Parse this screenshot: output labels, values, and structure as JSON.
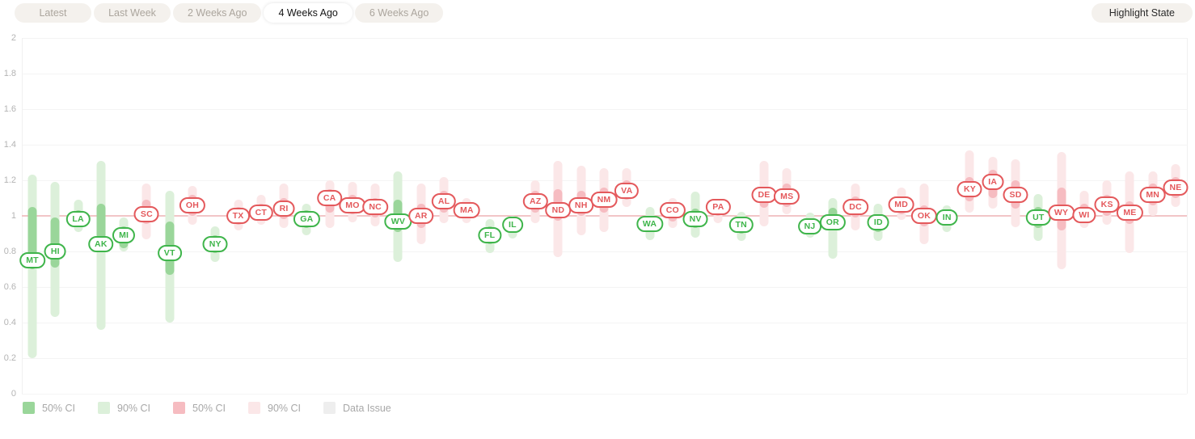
{
  "toolbar": {
    "tabs": [
      {
        "label": "Latest",
        "active": false
      },
      {
        "label": "Last Week",
        "active": false
      },
      {
        "label": "2 Weeks Ago",
        "active": false
      },
      {
        "label": "4 Weeks Ago",
        "active": true
      },
      {
        "label": "6 Weeks Ago",
        "active": false
      }
    ],
    "highlight_button_label": "Highlight State"
  },
  "colors": {
    "green_ci50": "#9ad69a",
    "green_ci90": "#dcf0da",
    "red_ci50": "#f6bcc1",
    "red_ci90": "#fbe7e8",
    "data_issue": "#eeeeee",
    "label_green": "#3fb54b",
    "label_red": "#e4595c",
    "reference_line": "#f2c5c7",
    "gridline": "#f4f4f4",
    "axis_text": "#b4b4b4"
  },
  "legend": [
    {
      "label": "50% CI",
      "color": "#9ad69a"
    },
    {
      "label": "90% CI",
      "color": "#dcf0da"
    },
    {
      "label": "50% CI",
      "color": "#f6bcc1"
    },
    {
      "label": "90% CI",
      "color": "#fbe7e8"
    },
    {
      "label": "Data Issue",
      "color": "#eeeeee"
    }
  ],
  "chart_data": {
    "type": "scatter",
    "subtype": "confidence-interval-dot-plot",
    "title": "",
    "xlabel": "",
    "ylabel": "",
    "ylim": [
      0,
      2
    ],
    "yticks": [
      "2",
      "1.8",
      "1.6",
      "1.4",
      "1.2",
      "1",
      "0.8",
      "0.6",
      "0.4",
      "0.2",
      "0"
    ],
    "ytick_values": [
      2,
      1.8,
      1.6,
      1.4,
      1.2,
      1,
      0.8,
      0.6,
      0.4,
      0.2,
      0
    ],
    "reference_line": 1,
    "grid": true,
    "legend_position": "bottom",
    "series": [
      {
        "abbr": "MT",
        "trend": "green",
        "value": 0.75,
        "ci50": [
          0.7,
          1.05
        ],
        "ci90": [
          0.2,
          1.23
        ]
      },
      {
        "abbr": "HI",
        "trend": "green",
        "value": 0.8,
        "ci50": [
          0.71,
          0.99
        ],
        "ci90": [
          0.43,
          1.19
        ]
      },
      {
        "abbr": "LA",
        "trend": "green",
        "value": 0.98,
        "ci50": [
          0.94,
          1.03
        ],
        "ci90": [
          0.91,
          1.09
        ]
      },
      {
        "abbr": "AK",
        "trend": "green",
        "value": 0.84,
        "ci50": [
          0.87,
          1.07
        ],
        "ci90": [
          0.36,
          1.31
        ]
      },
      {
        "abbr": "MI",
        "trend": "green",
        "value": 0.89,
        "ci50": [
          0.82,
          0.94
        ],
        "ci90": [
          0.8,
          0.99
        ]
      },
      {
        "abbr": "SC",
        "trend": "red",
        "value": 1.01,
        "ci50": [
          0.955,
          1.09
        ],
        "ci90": [
          0.87,
          1.18
        ]
      },
      {
        "abbr": "VT",
        "trend": "green",
        "value": 0.79,
        "ci50": [
          0.67,
          0.97
        ],
        "ci90": [
          0.4,
          1.14
        ]
      },
      {
        "abbr": "OH",
        "trend": "red",
        "value": 1.06,
        "ci50": [
          1.0,
          1.12
        ],
        "ci90": [
          0.95,
          1.17
        ]
      },
      {
        "abbr": "NY",
        "trend": "green",
        "value": 0.84,
        "ci50": [
          0.79,
          0.89
        ],
        "ci90": [
          0.74,
          0.94
        ]
      },
      {
        "abbr": "TX",
        "trend": "red",
        "value": 1.0,
        "ci50": [
          0.95,
          1.05
        ],
        "ci90": [
          0.92,
          1.09
        ]
      },
      {
        "abbr": "CT",
        "trend": "red",
        "value": 1.02,
        "ci50": [
          0.98,
          1.07
        ],
        "ci90": [
          0.95,
          1.12
        ]
      },
      {
        "abbr": "RI",
        "trend": "red",
        "value": 1.04,
        "ci50": [
          0.98,
          1.1
        ],
        "ci90": [
          0.93,
          1.18
        ]
      },
      {
        "abbr": "GA",
        "trend": "green",
        "value": 0.98,
        "ci50": [
          0.93,
          1.03
        ],
        "ci90": [
          0.89,
          1.07
        ]
      },
      {
        "abbr": "CA",
        "trend": "red",
        "value": 1.1,
        "ci50": [
          1.02,
          1.15
        ],
        "ci90": [
          0.93,
          1.2
        ]
      },
      {
        "abbr": "MO",
        "trend": "red",
        "value": 1.06,
        "ci50": [
          1.01,
          1.12
        ],
        "ci90": [
          0.965,
          1.19
        ]
      },
      {
        "abbr": "NC",
        "trend": "red",
        "value": 1.05,
        "ci50": [
          0.99,
          1.1
        ],
        "ci90": [
          0.94,
          1.18
        ]
      },
      {
        "abbr": "WV",
        "trend": "green",
        "value": 0.97,
        "ci50": [
          0.91,
          1.09
        ],
        "ci90": [
          0.74,
          1.25
        ]
      },
      {
        "abbr": "AR",
        "trend": "red",
        "value": 1.0,
        "ci50": [
          0.93,
          1.07
        ],
        "ci90": [
          0.84,
          1.18
        ]
      },
      {
        "abbr": "AL",
        "trend": "red",
        "value": 1.08,
        "ci50": [
          1.02,
          1.14
        ],
        "ci90": [
          0.96,
          1.22
        ]
      },
      {
        "abbr": "MA",
        "trend": "red",
        "value": 1.03,
        "ci50": [
          0.99,
          1.065
        ],
        "ci90": [
          0.96,
          1.1
        ]
      },
      {
        "abbr": "FL",
        "trend": "green",
        "value": 0.89,
        "ci50": [
          0.84,
          0.94
        ],
        "ci90": [
          0.79,
          0.98
        ]
      },
      {
        "abbr": "IL",
        "trend": "green",
        "value": 0.95,
        "ci50": [
          0.91,
          0.985
        ],
        "ci90": [
          0.875,
          1.0
        ]
      },
      {
        "abbr": "AZ",
        "trend": "red",
        "value": 1.08,
        "ci50": [
          1.02,
          1.14
        ],
        "ci90": [
          0.96,
          1.2
        ]
      },
      {
        "abbr": "ND",
        "trend": "red",
        "value": 1.03,
        "ci50": [
          0.975,
          1.15
        ],
        "ci90": [
          0.77,
          1.31
        ]
      },
      {
        "abbr": "NH",
        "trend": "red",
        "value": 1.06,
        "ci50": [
          1.0,
          1.14
        ],
        "ci90": [
          0.89,
          1.28
        ]
      },
      {
        "abbr": "NM",
        "trend": "red",
        "value": 1.09,
        "ci50": [
          1.02,
          1.16
        ],
        "ci90": [
          0.91,
          1.27
        ]
      },
      {
        "abbr": "VA",
        "trend": "red",
        "value": 1.14,
        "ci50": [
          1.09,
          1.2
        ],
        "ci90": [
          1.05,
          1.27
        ]
      },
      {
        "abbr": "WA",
        "trend": "green",
        "value": 0.955,
        "ci50": [
          0.91,
          1.0
        ],
        "ci90": [
          0.865,
          1.05
        ]
      },
      {
        "abbr": "CO",
        "trend": "red",
        "value": 1.03,
        "ci50": [
          0.97,
          1.07
        ],
        "ci90": [
          0.93,
          1.1
        ]
      },
      {
        "abbr": "NV",
        "trend": "green",
        "value": 0.98,
        "ci50": [
          0.93,
          1.04
        ],
        "ci90": [
          0.875,
          1.135
        ]
      },
      {
        "abbr": "PA",
        "trend": "red",
        "value": 1.05,
        "ci50": [
          1.0,
          1.08
        ],
        "ci90": [
          0.96,
          1.09
        ]
      },
      {
        "abbr": "TN",
        "trend": "green",
        "value": 0.95,
        "ci50": [
          0.9,
          0.99
        ],
        "ci90": [
          0.86,
          1.025
        ]
      },
      {
        "abbr": "DE",
        "trend": "red",
        "value": 1.12,
        "ci50": [
          1.045,
          1.16
        ],
        "ci90": [
          0.94,
          1.31
        ]
      },
      {
        "abbr": "MS",
        "trend": "red",
        "value": 1.11,
        "ci50": [
          1.05,
          1.18
        ],
        "ci90": [
          1.01,
          1.27
        ]
      },
      {
        "abbr": "NJ",
        "trend": "green",
        "value": 0.94,
        "ci50": [
          0.905,
          0.975
        ],
        "ci90": [
          0.875,
          1.02
        ]
      },
      {
        "abbr": "OR",
        "trend": "green",
        "value": 0.965,
        "ci50": [
          0.93,
          1.045
        ],
        "ci90": [
          0.76,
          1.1
        ]
      },
      {
        "abbr": "DC",
        "trend": "red",
        "value": 1.05,
        "ci50": [
          0.99,
          1.11
        ],
        "ci90": [
          0.92,
          1.18
        ]
      },
      {
        "abbr": "ID",
        "trend": "green",
        "value": 0.965,
        "ci50": [
          0.91,
          1.01
        ],
        "ci90": [
          0.86,
          1.07
        ]
      },
      {
        "abbr": "MD",
        "trend": "red",
        "value": 1.065,
        "ci50": [
          1.01,
          1.11
        ],
        "ci90": [
          0.975,
          1.16
        ]
      },
      {
        "abbr": "OK",
        "trend": "red",
        "value": 1.0,
        "ci50": [
          0.94,
          1.06
        ],
        "ci90": [
          0.84,
          1.18
        ]
      },
      {
        "abbr": "IN",
        "trend": "green",
        "value": 0.99,
        "ci50": [
          0.95,
          1.03
        ],
        "ci90": [
          0.91,
          1.06
        ]
      },
      {
        "abbr": "KY",
        "trend": "red",
        "value": 1.15,
        "ci50": [
          1.08,
          1.22
        ],
        "ci90": [
          1.02,
          1.37
        ]
      },
      {
        "abbr": "IA",
        "trend": "red",
        "value": 1.19,
        "ci50": [
          1.1,
          1.26
        ],
        "ci90": [
          1.04,
          1.33
        ]
      },
      {
        "abbr": "SD",
        "trend": "red",
        "value": 1.12,
        "ci50": [
          1.04,
          1.2
        ],
        "ci90": [
          0.935,
          1.32
        ]
      },
      {
        "abbr": "UT",
        "trend": "green",
        "value": 0.99,
        "ci50": [
          0.93,
          1.05
        ],
        "ci90": [
          0.86,
          1.125
        ]
      },
      {
        "abbr": "WY",
        "trend": "red",
        "value": 1.02,
        "ci50": [
          0.92,
          1.16
        ],
        "ci90": [
          0.7,
          1.36
        ]
      },
      {
        "abbr": "WI",
        "trend": "red",
        "value": 1.005,
        "ci50": [
          0.97,
          1.07
        ],
        "ci90": [
          0.93,
          1.14
        ]
      },
      {
        "abbr": "KS",
        "trend": "red",
        "value": 1.065,
        "ci50": [
          1.0,
          1.12
        ],
        "ci90": [
          0.95,
          1.2
        ]
      },
      {
        "abbr": "ME",
        "trend": "red",
        "value": 1.02,
        "ci50": [
          0.955,
          1.08
        ],
        "ci90": [
          0.79,
          1.25
        ]
      },
      {
        "abbr": "MN",
        "trend": "red",
        "value": 1.12,
        "ci50": [
          1.06,
          1.18
        ],
        "ci90": [
          1.0,
          1.25
        ]
      },
      {
        "abbr": "NE",
        "trend": "red",
        "value": 1.16,
        "ci50": [
          1.1,
          1.22
        ],
        "ci90": [
          1.05,
          1.29
        ]
      }
    ]
  }
}
